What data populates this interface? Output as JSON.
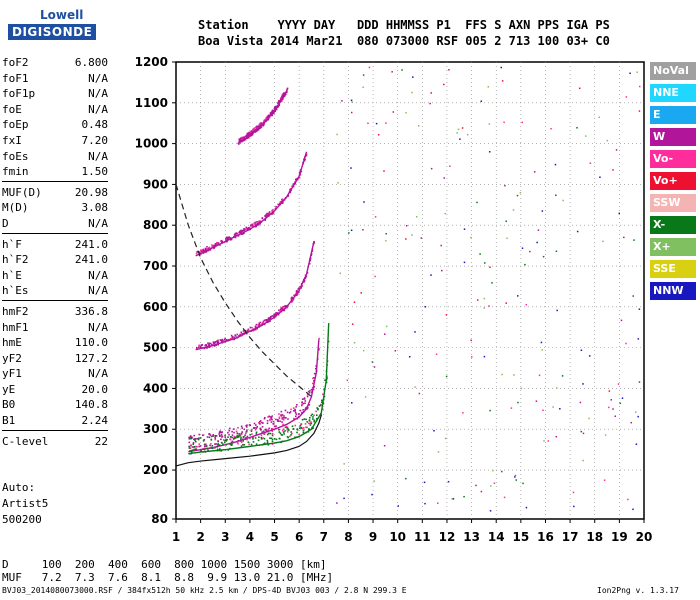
{
  "logo": {
    "line1": "Lowell",
    "line2": "DIGISONDE"
  },
  "header": {
    "labels": "Station    YYYY DAY   DDD HHMMSS P1  FFS S AXN PPS IGA PS",
    "values": "Boa Vista 2014 Mar21  080 073000 RSF 005 2 713 100 03+ C0"
  },
  "params": [
    {
      "k": "foF2",
      "v": "6.800"
    },
    {
      "k": "foF1",
      "v": "N/A"
    },
    {
      "k": "foF1p",
      "v": "N/A"
    },
    {
      "k": "foE",
      "v": "N/A"
    },
    {
      "k": "foEp",
      "v": "0.48"
    },
    {
      "k": "fxI",
      "v": "7.20"
    },
    {
      "k": "foEs",
      "v": "N/A"
    },
    {
      "k": "fmin",
      "v": "1.50"
    },
    {
      "k": "MUF(D)",
      "v": "20.98"
    },
    {
      "k": "M(D)",
      "v": "3.08"
    },
    {
      "k": "D",
      "v": "N/A"
    },
    {
      "k": "h`F",
      "v": "241.0"
    },
    {
      "k": "h`F2",
      "v": "241.0"
    },
    {
      "k": "h`E",
      "v": "N/A"
    },
    {
      "k": "h`Es",
      "v": "N/A"
    },
    {
      "k": "hmF2",
      "v": "336.8"
    },
    {
      "k": "hmF1",
      "v": "N/A"
    },
    {
      "k": "hmE",
      "v": "110.0"
    },
    {
      "k": "yF2",
      "v": "127.2"
    },
    {
      "k": "yF1",
      "v": "N/A"
    },
    {
      "k": "yE",
      "v": "20.0"
    },
    {
      "k": "B0",
      "v": "140.8"
    },
    {
      "k": "B1",
      "v": "2.24"
    },
    {
      "k": "C-level",
      "v": "22"
    }
  ],
  "auto": {
    "l1": "Auto:",
    "l2": "Artist5",
    "l3": "500200"
  },
  "legend": [
    {
      "label": "NoVal",
      "color": "#a0a0a0"
    },
    {
      "label": "NNE",
      "color": "#20d8ff"
    },
    {
      "label": "E",
      "color": "#1aa8f0"
    },
    {
      "label": "W",
      "color": "#b0159a"
    },
    {
      "label": "Vo-",
      "color": "#ff2d9b"
    },
    {
      "label": "Vo+",
      "color": "#ee1030"
    },
    {
      "label": "SSW",
      "color": "#f4b4b4"
    },
    {
      "label": "X-",
      "color": "#087818"
    },
    {
      "label": "X+",
      "color": "#80c060"
    },
    {
      "label": "SSE",
      "color": "#d8d010"
    },
    {
      "label": "NNW",
      "color": "#1818c0"
    }
  ],
  "dmuf": {
    "d_line": "D     100  200  400  600  800 1000 1500 3000 [km]",
    "muf_line": "MUF   7.2  7.3  7.6  8.1  8.8  9.9 13.0 21.0 [MHz]"
  },
  "footer": {
    "left": "BVJ03_2014080073000.RSF / 384fx512h 50 kHz 2.5 km / DPS-4D BVJ03 003 / 2.8 N 299.3 E",
    "right": "Ion2Png v. 1.3.17"
  },
  "chart_data": {
    "type": "scatter",
    "title": "",
    "xlabel": "",
    "ylabel": "",
    "x_unit_implied": "MHz",
    "y_unit_implied": "km",
    "xlim": [
      1,
      20
    ],
    "ylim": [
      80,
      1200
    ],
    "x_ticks": [
      "1",
      "2",
      "3",
      "4",
      "5",
      "6",
      "7",
      "8",
      "9",
      "10",
      "11",
      "12",
      "13",
      "14",
      "15",
      "16",
      "17",
      "18",
      "19",
      "20"
    ],
    "y_ticks": [
      "80",
      "200",
      "300",
      "400",
      "500",
      "600",
      "700",
      "800",
      "900",
      "1000",
      "1100",
      "1200"
    ],
    "grid": true,
    "traces": [
      {
        "name": "O-trace 1st hop",
        "color": "#b0159a",
        "x": [
          1.5,
          2,
          2.5,
          3,
          3.5,
          4,
          4.5,
          5,
          5.5,
          6,
          6.3,
          6.5,
          6.7,
          6.8
        ],
        "y": [
          245,
          250,
          255,
          262,
          270,
          280,
          290,
          300,
          312,
          330,
          350,
          380,
          440,
          520
        ]
      },
      {
        "name": "X-trace 1st hop",
        "color": "#087818",
        "x": [
          1.5,
          2,
          3,
          4,
          5,
          5.5,
          6,
          6.5,
          6.9,
          7.1,
          7.2
        ],
        "y": [
          240,
          244,
          250,
          258,
          266,
          272,
          282,
          300,
          340,
          420,
          560
        ]
      },
      {
        "name": "O-trace 2nd hop",
        "color": "#b0159a",
        "x": [
          1.8,
          2.5,
          3,
          3.5,
          4,
          4.5,
          5,
          5.5,
          6,
          6.3,
          6.6
        ],
        "y": [
          495,
          505,
          515,
          525,
          540,
          555,
          575,
          600,
          640,
          680,
          760
        ]
      },
      {
        "name": "O-trace 3rd hop",
        "color": "#b0159a",
        "x": [
          1.8,
          2.5,
          3,
          3.5,
          4,
          4.5,
          5,
          5.5,
          6,
          6.3
        ],
        "y": [
          725,
          745,
          760,
          775,
          790,
          810,
          835,
          870,
          920,
          980
        ]
      },
      {
        "name": "O-trace 4th hop",
        "color": "#b0159a",
        "x": [
          3.5,
          4,
          4.5,
          5,
          5.5
        ],
        "y": [
          1000,
          1020,
          1045,
          1080,
          1130
        ]
      }
    ],
    "profile_line": {
      "x": [
        1,
        1.5,
        2,
        3,
        4,
        5,
        5.5,
        6,
        6.3,
        6.6,
        6.8,
        6.9
      ],
      "y": [
        210,
        218,
        222,
        228,
        234,
        242,
        248,
        258,
        270,
        290,
        315,
        335
      ]
    },
    "dashed_line": {
      "x": [
        1,
        1.5,
        2,
        2.5,
        3,
        3.5,
        4,
        4.5,
        5,
        5.5,
        6,
        6.5
      ],
      "y": [
        900,
        800,
        720,
        660,
        610,
        565,
        525,
        490,
        460,
        430,
        405,
        380
      ]
    }
  }
}
